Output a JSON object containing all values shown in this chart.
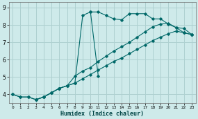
{
  "xlabel": "Humidex (Indice chaleur)",
  "ylabel": "",
  "bg_color": "#ceeaea",
  "line_color": "#006868",
  "grid_color": "#aed0d0",
  "xlim": [
    -0.5,
    23.5
  ],
  "ylim": [
    3.5,
    9.3
  ],
  "xticks": [
    0,
    1,
    2,
    3,
    4,
    5,
    6,
    7,
    8,
    9,
    10,
    11,
    12,
    13,
    14,
    15,
    16,
    17,
    18,
    19,
    20,
    21,
    22,
    23
  ],
  "yticks": [
    4,
    5,
    6,
    7,
    8,
    9
  ],
  "series": [
    {
      "x": [
        0,
        1,
        2,
        3,
        4,
        5,
        6,
        7,
        8,
        9,
        10,
        11,
        12,
        13,
        14,
        15,
        16,
        17,
        18,
        19,
        20,
        21,
        22,
        23
      ],
      "y": [
        4.0,
        3.85,
        3.85,
        3.7,
        3.85,
        4.1,
        4.35,
        4.5,
        4.65,
        4.9,
        5.15,
        5.4,
        5.65,
        5.9,
        6.1,
        6.35,
        6.6,
        6.85,
        7.1,
        7.3,
        7.5,
        7.65,
        7.55,
        7.45
      ]
    },
    {
      "x": [
        0,
        1,
        2,
        3,
        4,
        5,
        6,
        7,
        8,
        9,
        10,
        11,
        12,
        13,
        14,
        15,
        16,
        17,
        18,
        19,
        20,
        21,
        22,
        23
      ],
      "y": [
        4.0,
        3.85,
        3.85,
        3.7,
        3.85,
        4.1,
        4.35,
        4.5,
        5.05,
        5.35,
        5.55,
        5.9,
        6.2,
        6.5,
        6.75,
        7.0,
        7.3,
        7.6,
        7.9,
        8.05,
        8.1,
        7.85,
        7.55,
        7.45
      ]
    },
    {
      "x": [
        3,
        4,
        5,
        6,
        7,
        8,
        9,
        10,
        11
      ],
      "y": [
        3.7,
        3.85,
        4.1,
        4.35,
        4.5,
        4.65,
        8.55,
        8.75,
        5.05
      ]
    },
    {
      "x": [
        10,
        11,
        12,
        13,
        14,
        15,
        16,
        17,
        18,
        19,
        20,
        21,
        22,
        23
      ],
      "y": [
        8.75,
        8.75,
        8.55,
        8.35,
        8.3,
        8.65,
        8.65,
        8.65,
        8.35,
        8.35,
        8.05,
        7.85,
        7.8,
        7.45
      ]
    }
  ]
}
